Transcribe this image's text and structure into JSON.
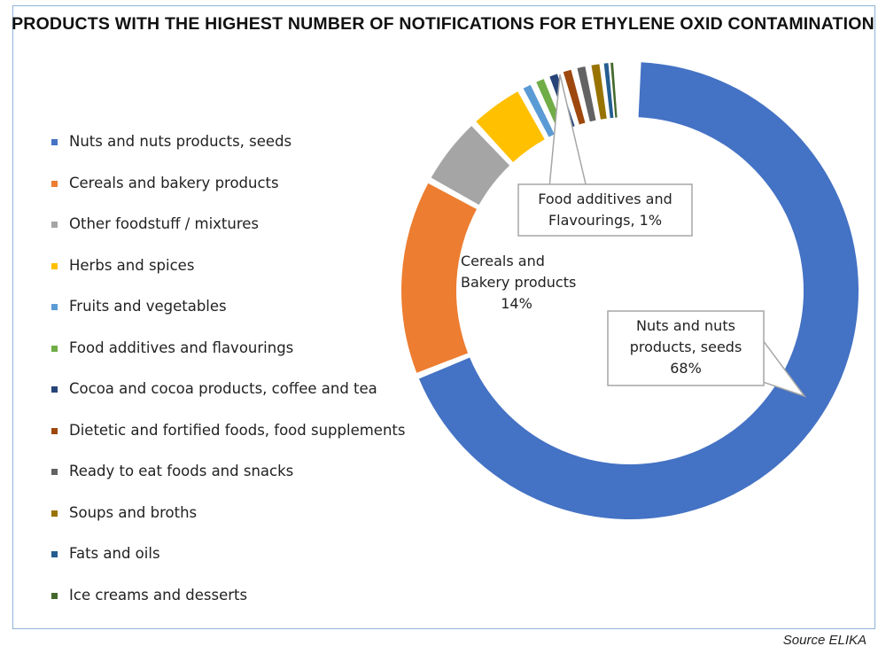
{
  "chart_data": {
    "type": "pie",
    "style": "donut",
    "title": "PRODUCTS WITH THE HIGHEST NUMBER OF NOTIFICATIONS FOR ETHYLENE OXID CONTAMINATION",
    "legend_position": "left",
    "slices": [
      {
        "name": "Nuts and nuts products, seeds",
        "value": 68,
        "color": "#4472c4"
      },
      {
        "name": "Cereals and bakery products",
        "value": 14,
        "color": "#ed7d31"
      },
      {
        "name": "Other foodstuff / mixtures",
        "value": 5,
        "color": "#a5a5a5"
      },
      {
        "name": "Herbs and spices",
        "value": 4,
        "color": "#ffc000"
      },
      {
        "name": "Fruits and vegetables",
        "value": 1,
        "color": "#5b9bd5"
      },
      {
        "name": "Food additives and flavourings",
        "value": 1,
        "color": "#70ad47"
      },
      {
        "name": "Cocoa and cocoa products, coffee and tea",
        "value": 1,
        "color": "#264478"
      },
      {
        "name": "Dietetic and fortified foods, food supplements",
        "value": 1,
        "color": "#9e480e"
      },
      {
        "name": "Ready to eat foods and snacks",
        "value": 1,
        "color": "#636363"
      },
      {
        "name": "Soups and broths",
        "value": 1,
        "color": "#997300"
      },
      {
        "name": "Fats and oils",
        "value": 0.5,
        "color": "#255e91"
      },
      {
        "name": "Ice creams and desserts",
        "value": 0.3,
        "color": "#43682b"
      }
    ],
    "callouts": [
      {
        "lines": [
          "Food additives and",
          "Flavourings, 1%"
        ]
      },
      {
        "lines": [
          "Cereals and",
          "Bakery products",
          "14%"
        ]
      },
      {
        "lines": [
          "Nuts and nuts",
          "products, seeds",
          "68%"
        ]
      }
    ]
  },
  "source": "Source ELIKA"
}
